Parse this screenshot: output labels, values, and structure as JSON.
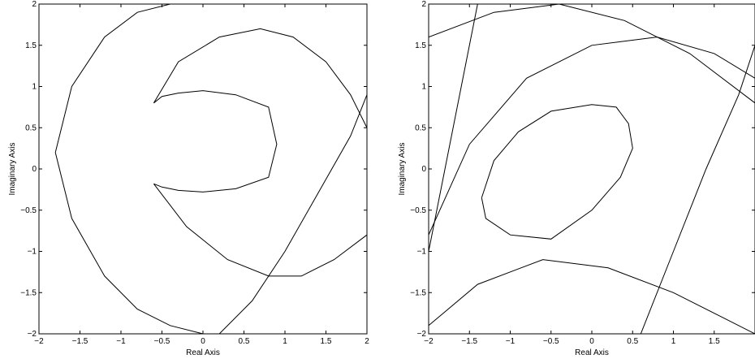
{
  "chart_data": [
    {
      "type": "line",
      "title": "",
      "xlabel": "Real Axis",
      "ylabel": "Imaginary Axis",
      "xlim": [
        -2,
        2
      ],
      "ylim": [
        -2,
        2
      ],
      "xticks": [
        "−2",
        "−1.5",
        "−1",
        "−0.5",
        "0",
        "0.5",
        "1",
        "1.5",
        "2"
      ],
      "yticks": [
        "−2",
        "−1.5",
        "−1",
        "−0.5",
        "0",
        "0.5",
        "1",
        "1.5",
        "2"
      ],
      "grid": false,
      "legend": "none",
      "line_color": "#000000",
      "series": [
        {
          "x": [
            -1.8,
            -1.6,
            -1.2,
            -0.8,
            -0.4,
            0.0
          ],
          "y": [
            0.2,
            -0.6,
            -1.3,
            -1.7,
            -1.9,
            -2.0
          ]
        },
        {
          "x": [
            -1.8,
            -1.6,
            -1.2,
            -0.8,
            -0.4,
            0.0
          ],
          "y": [
            0.2,
            1.0,
            1.6,
            1.9,
            2.0,
            2.0
          ]
        },
        {
          "x": [
            -0.6,
            -0.5,
            -0.3,
            0.0,
            0.4,
            0.8,
            0.9,
            0.8,
            0.4,
            0.0,
            -0.3,
            -0.5,
            -0.6
          ],
          "y": [
            -0.18,
            -0.22,
            -0.26,
            -0.28,
            -0.24,
            -0.1,
            0.3,
            0.75,
            0.9,
            0.95,
            0.92,
            0.88,
            0.8
          ]
        },
        {
          "x": [
            -0.6,
            -0.3,
            0.2,
            0.7,
            1.1,
            1.5,
            1.8,
            2.0
          ],
          "y": [
            0.8,
            1.3,
            1.6,
            1.7,
            1.6,
            1.3,
            0.9,
            0.5
          ]
        },
        {
          "x": [
            -0.6,
            -0.2,
            0.3,
            0.8,
            1.2,
            1.6,
            2.0
          ],
          "y": [
            -0.18,
            -0.7,
            -1.1,
            -1.3,
            -1.3,
            -1.1,
            -0.8
          ]
        },
        {
          "x": [
            0.2,
            0.6,
            1.0,
            1.4,
            1.8,
            2.0
          ],
          "y": [
            -2.0,
            -1.6,
            -1.0,
            -0.3,
            0.4,
            0.9
          ]
        }
      ]
    },
    {
      "type": "line",
      "title": "",
      "xlabel": "Real Axis",
      "ylabel": "Imaginary Axis",
      "xlim": [
        -2,
        2
      ],
      "ylim": [
        -2,
        2
      ],
      "xticks": [
        "−2",
        "−1.5",
        "−1",
        "−0.5",
        "0",
        "0.5",
        "1",
        "1.5"
      ],
      "yticks": [
        "−2",
        "−1.5",
        "−1",
        "−0.5",
        "0",
        "0.5",
        "1",
        "1.5",
        "2"
      ],
      "grid": false,
      "legend": "none",
      "line_color": "#000000",
      "series": [
        {
          "x": [
            -1.35,
            -1.2,
            -0.9,
            -0.5,
            0.0,
            0.3,
            0.45,
            0.5,
            0.35,
            0.0,
            -0.5,
            -1.0,
            -1.3,
            -1.35
          ],
          "y": [
            -0.35,
            0.1,
            0.45,
            0.7,
            0.78,
            0.75,
            0.55,
            0.25,
            -0.1,
            -0.5,
            -0.85,
            -0.8,
            -0.6,
            -0.35
          ]
        },
        {
          "x": [
            -2.0,
            -1.5,
            -0.8,
            0.0,
            0.8,
            1.5,
            2.0
          ],
          "y": [
            -0.8,
            0.3,
            1.1,
            1.5,
            1.6,
            1.4,
            1.1
          ]
        },
        {
          "x": [
            -2.0,
            -1.2,
            -0.4,
            0.4,
            1.2,
            2.0
          ],
          "y": [
            1.6,
            1.9,
            2.0,
            1.8,
            1.4,
            0.8
          ]
        },
        {
          "x": [
            -2.0,
            -1.4,
            -0.6,
            0.2,
            1.0,
            1.6,
            2.0
          ],
          "y": [
            -1.9,
            -1.4,
            -1.1,
            -1.2,
            -1.5,
            -1.8,
            -2.0
          ]
        },
        {
          "x": [
            0.6,
            1.0,
            1.4,
            1.8,
            2.0
          ],
          "y": [
            -2.0,
            -1.0,
            0.0,
            0.9,
            1.5
          ]
        },
        {
          "x": [
            -2.0,
            -1.8,
            -1.6,
            -1.4
          ],
          "y": [
            -1.0,
            0.0,
            1.0,
            2.0
          ]
        }
      ]
    }
  ]
}
